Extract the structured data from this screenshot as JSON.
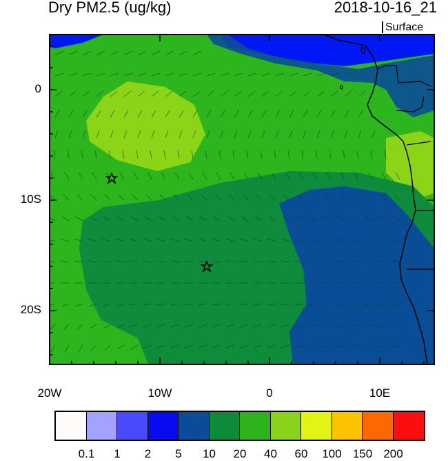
{
  "map": {
    "title": "Dry PM2.5 (ug/kg)",
    "datetime": "2018-10-16_21",
    "level": "Surface",
    "lat_labels": [
      "0",
      "10S",
      "20S"
    ],
    "lon_labels": [
      "20W",
      "10W",
      "0",
      "10E"
    ],
    "markers": [
      {
        "name": "star-marker",
        "lon": -14.3,
        "lat": -8.0
      },
      {
        "name": "star-marker",
        "lon": -5.7,
        "lat": -16.0
      }
    ],
    "fill_colors": {
      "ocean_mid": "#2db51d",
      "light_patch": "#8bd418",
      "dark_green": "#0e8c3c",
      "dark_blue": "#0a4d97",
      "blue": "#0018f5",
      "land": "#2db51d"
    }
  },
  "colorbar": {
    "colors": [
      "#fdfcf8",
      "#a3a3ff",
      "#4a4afd",
      "#0a0af0",
      "#0b4b99",
      "#0e8b3a",
      "#2fb31c",
      "#8ad31a",
      "#e2f415",
      "#fdc300",
      "#fd6800",
      "#fd0e0e"
    ],
    "labels": [
      "0.1",
      "1",
      "2",
      "5",
      "10",
      "20",
      "40",
      "60",
      "100",
      "150",
      "200"
    ]
  }
}
